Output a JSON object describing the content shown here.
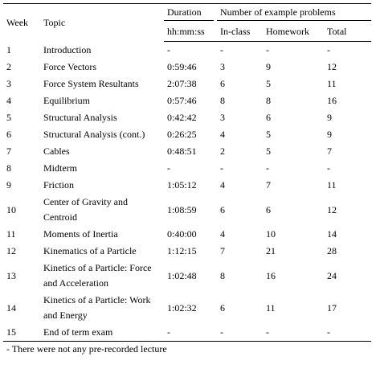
{
  "table": {
    "header": {
      "week": "Week",
      "topic": "Topic",
      "duration": "Duration",
      "group": "Number of example problems",
      "sub": [
        "hh:mm:ss",
        "In-class",
        "Homework",
        "Total"
      ]
    },
    "rows": [
      [
        "1",
        "Introduction",
        "-",
        "-",
        "-",
        "-"
      ],
      [
        "2",
        "Force Vectors",
        "0:59:46",
        "3",
        "9",
        "12"
      ],
      [
        "3",
        "Force System Resultants",
        "2:07:38",
        "6",
        "5",
        "11"
      ],
      [
        "4",
        "Equilibrium",
        "0:57:46",
        "8",
        "8",
        "16"
      ],
      [
        "5",
        "Structural Analysis",
        "0:42:42",
        "3",
        "6",
        "9"
      ],
      [
        "6",
        "Structural Analysis (cont.)",
        "0:26:25",
        "4",
        "5",
        "9"
      ],
      [
        "7",
        "Cables",
        "0:48:51",
        "2",
        "5",
        "7"
      ],
      [
        "8",
        "Midterm",
        "-",
        "-",
        "-",
        "-"
      ],
      [
        "9",
        "Friction",
        "1:05:12",
        "4",
        "7",
        "11"
      ],
      [
        "10",
        "Center of Gravity and Centroid",
        "1:08:59",
        "6",
        "6",
        "12"
      ],
      [
        "11",
        "Moments of Inertia",
        "0:40:00",
        "4",
        "10",
        "14"
      ],
      [
        "12",
        "Kinematics of a Particle",
        "1:12:15",
        "7",
        "21",
        "28"
      ],
      [
        "13",
        "Kinetics of a Particle: Force and Acceleration",
        "1:02:48",
        "8",
        "16",
        "24"
      ],
      [
        "14",
        "Kinetics of a Particle: Work and Energy",
        "1:02:32",
        "6",
        "11",
        "17"
      ],
      [
        "15",
        "End of term exam",
        "-",
        "-",
        "-",
        "-"
      ]
    ],
    "footnote": "- There were not any pre-recorded lecture"
  }
}
